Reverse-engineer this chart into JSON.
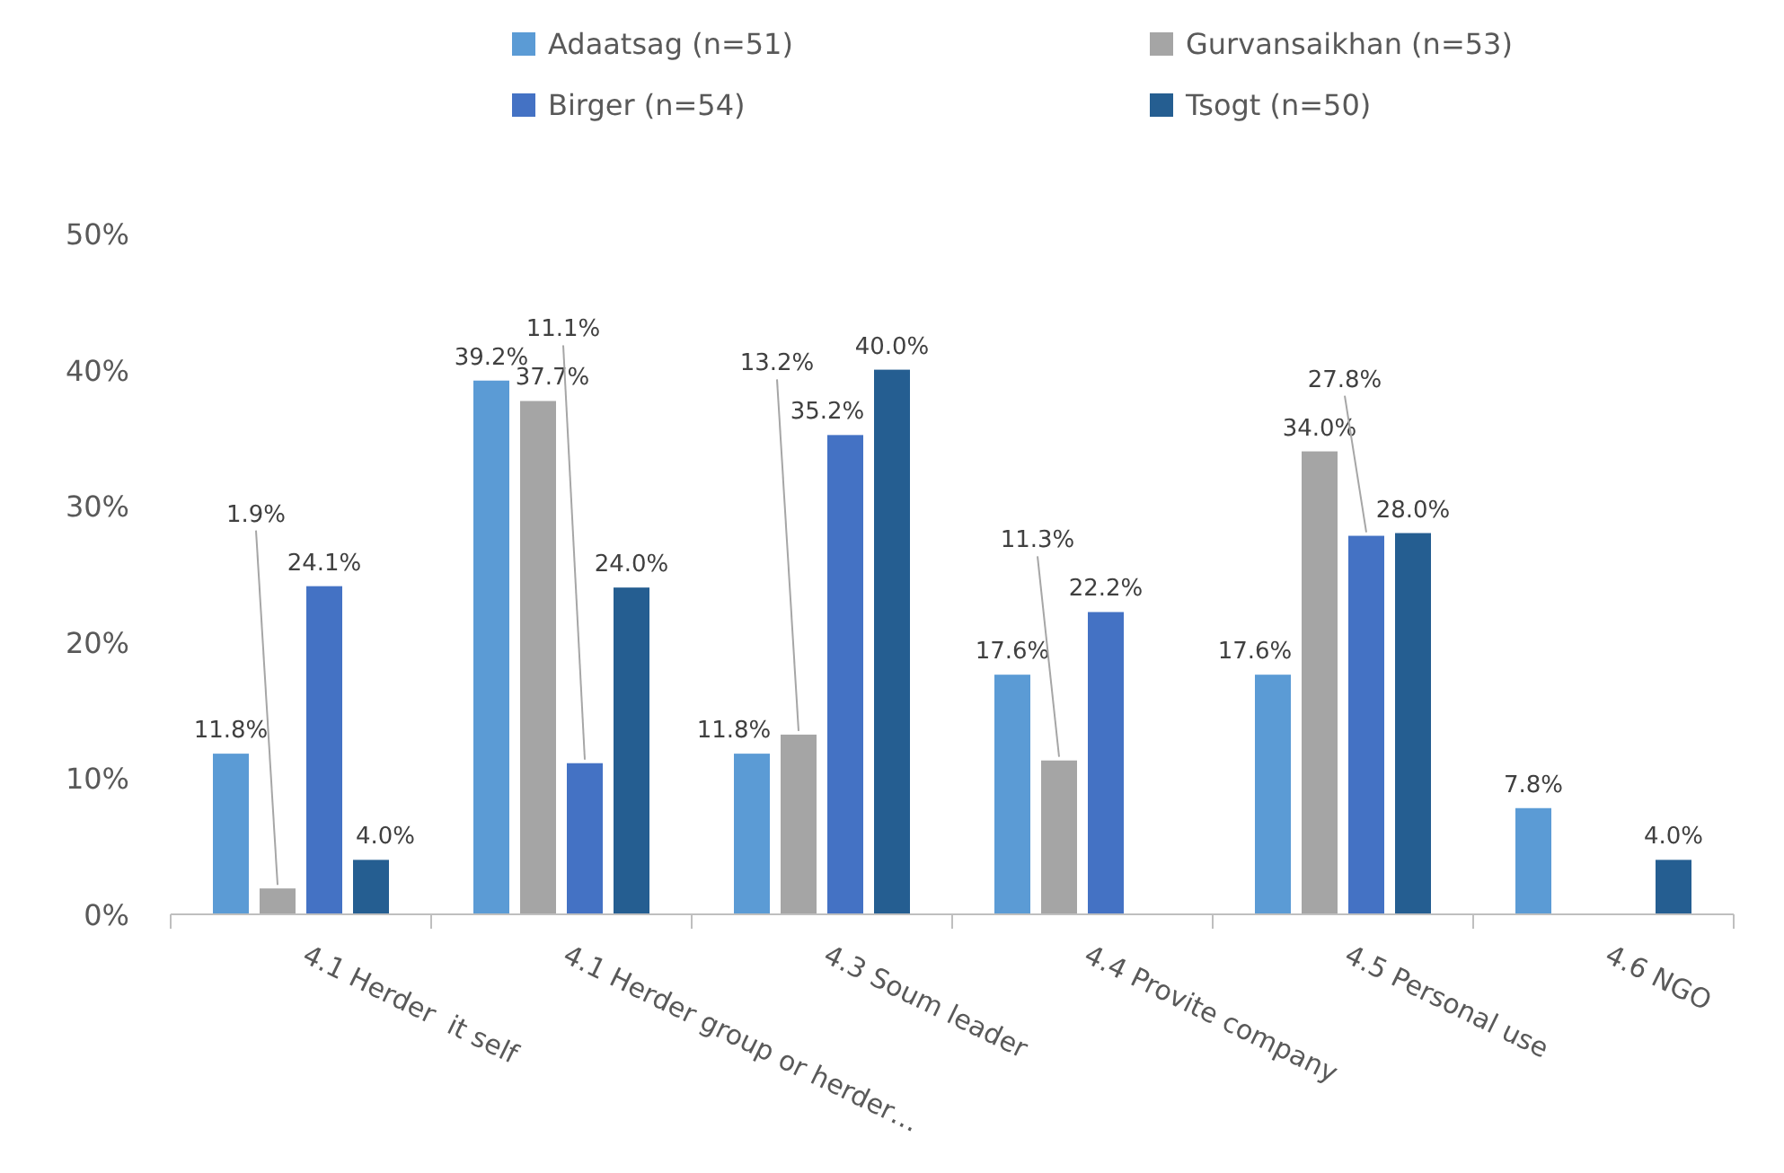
{
  "chart_data": {
    "type": "bar",
    "categories": [
      "4.1 Herder  it self",
      "4.1 Herder group or herder…",
      "4.3 Soum leader",
      "4.4 Provite company",
      "4.5 Personal use",
      "4.6 NGO"
    ],
    "series": [
      {
        "name": "Adaatsag (n=51)",
        "color": "#5b9bd5",
        "values": [
          11.8,
          39.2,
          11.8,
          17.6,
          17.6,
          7.8
        ],
        "value_labels": [
          "11.8%",
          "39.2%",
          "11.8%",
          "17.6%",
          "17.6%",
          "7.8%"
        ]
      },
      {
        "name": "Gurvansaikhan (n=53)",
        "color": "#a5a5a5",
        "values": [
          1.9,
          37.7,
          13.2,
          11.3,
          34.0,
          null
        ],
        "value_labels": [
          "1.9%",
          "37.7%",
          "13.2%",
          "11.3%",
          "34.0%",
          null
        ]
      },
      {
        "name": "Birger (n=54)",
        "color": "#4472c4",
        "values": [
          24.1,
          11.1,
          35.2,
          22.2,
          27.8,
          null
        ],
        "value_labels": [
          "24.1%",
          "11.1%",
          "35.2%",
          "22.2%",
          "27.8%",
          null
        ]
      },
      {
        "name": "Tsogt (n=50)",
        "color": "#255e91",
        "values": [
          4.0,
          24.0,
          40.0,
          null,
          28.0,
          4.0
        ],
        "value_labels": [
          "4.0%",
          "24.0%",
          "40.0%",
          null,
          "28.0%",
          "4.0%"
        ]
      }
    ],
    "ylim": [
      0,
      50
    ],
    "yticks": [
      {
        "value": 0,
        "label": "0%"
      },
      {
        "value": 10,
        "label": "10%"
      },
      {
        "value": 20,
        "label": "20%"
      },
      {
        "value": 30,
        "label": "30%"
      },
      {
        "value": 40,
        "label": "40%"
      },
      {
        "value": 50,
        "label": "50%"
      }
    ],
    "grid": false,
    "legend": "top"
  }
}
